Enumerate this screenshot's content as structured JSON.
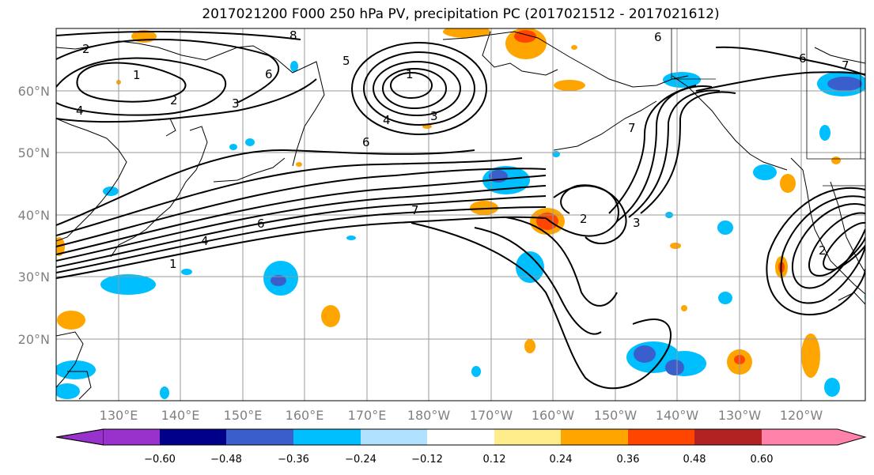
{
  "title": "2017021200 F000 250 hPa PV, precipitation PC (2017021512 - 2017021612)",
  "lat_labels": [
    "60°N",
    "50°N",
    "40°N",
    "30°N",
    "20°N"
  ],
  "lon_labels": [
    "130°E",
    "140°E",
    "150°E",
    "160°E",
    "170°E",
    "180°W",
    "170°W",
    "160°W",
    "150°W",
    "140°W",
    "130°W",
    "120°W"
  ],
  "colorbar": {
    "ticks": [
      "−0.60",
      "−0.48",
      "−0.36",
      "−0.24",
      "−0.12",
      "0.12",
      "0.24",
      "0.36",
      "0.48",
      "0.60"
    ],
    "colors": [
      "#9932cc",
      "#00008b",
      "#3a5fcd",
      "#00bfff",
      "#b0e2ff",
      "#ffffff",
      "#ffec8b",
      "#ffa500",
      "#ff4500",
      "#b22222",
      "#ff82ab"
    ]
  },
  "contour_labels": [
    "2",
    "1",
    "2",
    "3",
    "4",
    "6",
    "5",
    "1",
    "3",
    "4",
    "6",
    "7",
    "6",
    "4",
    "1",
    "7",
    "3",
    "2",
    "7",
    "6",
    "2",
    "8",
    "6"
  ]
}
